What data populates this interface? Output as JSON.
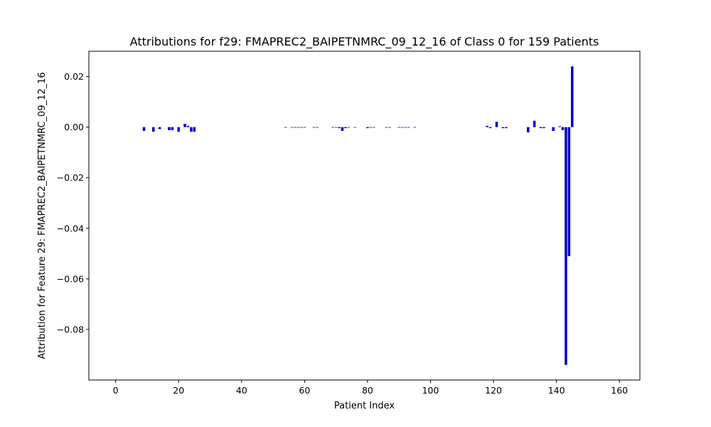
{
  "chart_data": {
    "type": "bar",
    "title": "Attributions for f29: FMAPREC2_BAIPETNMRC_09_12_16 of Class 0 for 159 Patients",
    "xlabel": "Patient Index",
    "ylabel": "Attribution for Feature 29: FMAPREC2_BAIPETNMRC_09_12_16",
    "xlim": [
      -8.5,
      166.5
    ],
    "ylim": [
      -0.1,
      0.03
    ],
    "xticks": [
      0,
      20,
      40,
      60,
      80,
      100,
      120,
      140,
      160
    ],
    "yticks": [
      0.02,
      0.0,
      -0.02,
      -0.04,
      -0.06,
      -0.08
    ],
    "ytick_labels": [
      "0.02",
      "0.00",
      "−0.02",
      "−0.04",
      "−0.06",
      "−0.08"
    ],
    "bar_color": "#0000cc",
    "grid": false,
    "legend": "none",
    "x": [
      9,
      12,
      14,
      17,
      18,
      20,
      22,
      23,
      24,
      25,
      54,
      56,
      57,
      58,
      59,
      60,
      63,
      64,
      69,
      70,
      71,
      72,
      73,
      74,
      76,
      80,
      81,
      82,
      86,
      87,
      90,
      91,
      92,
      93,
      95,
      118,
      119,
      121,
      123,
      124,
      131,
      133,
      135,
      136,
      139,
      141,
      142,
      143,
      144,
      145
    ],
    "values": [
      -0.0015,
      -0.0018,
      -0.0008,
      -0.0012,
      -0.0012,
      -0.0018,
      0.0013,
      0.0005,
      -0.0018,
      -0.0018,
      -0.0002,
      -0.0002,
      -0.0002,
      -0.0002,
      -0.0002,
      -0.0002,
      -0.0002,
      -0.0002,
      -0.0002,
      -0.0002,
      -0.0004,
      -0.0015,
      -0.0004,
      -0.0002,
      -0.0002,
      -0.0004,
      -0.0002,
      -0.0002,
      -0.0002,
      -0.0002,
      -0.0002,
      -0.0002,
      -0.0002,
      -0.0002,
      -0.0002,
      0.0005,
      -0.0004,
      0.0021,
      -0.0004,
      -0.0004,
      -0.0021,
      0.0025,
      -0.0004,
      -0.0004,
      -0.0015,
      0.0003,
      -0.0012,
      -0.094,
      -0.051,
      0.024
    ]
  }
}
